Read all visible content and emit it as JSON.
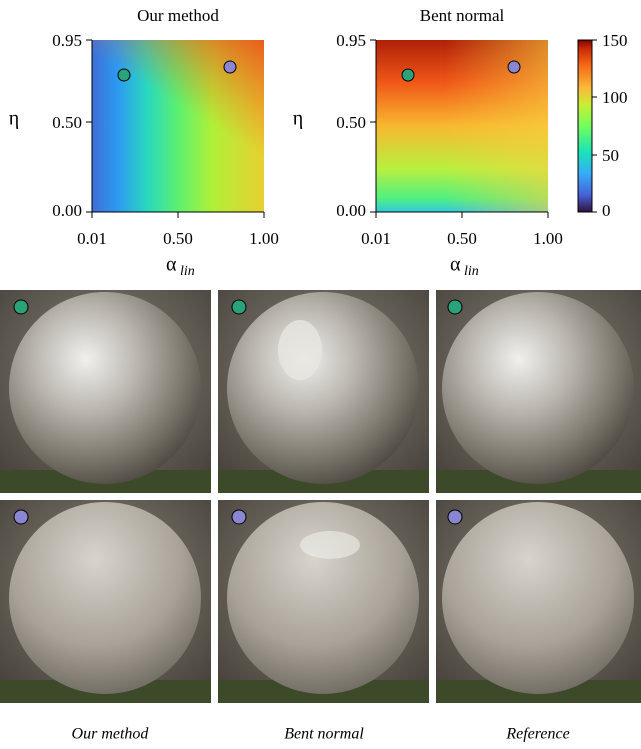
{
  "figure": {
    "heatmaps": [
      {
        "title": "Our method",
        "y_label": "η",
        "x_label": "α",
        "x_label_sub": "lin",
        "x_ticks": [
          "0.01",
          "0.50",
          "1.00"
        ],
        "y_ticks": [
          "0.95",
          "0.50",
          "0.00"
        ]
      },
      {
        "title": "Bent normal",
        "y_label": "η",
        "x_label": "α",
        "x_label_sub": "lin",
        "x_ticks": [
          "0.01",
          "0.50",
          "1.00"
        ],
        "y_ticks": [
          "0.95",
          "0.50",
          "0.00"
        ]
      }
    ],
    "colorbar_ticks": [
      "150",
      "100",
      "50",
      "0"
    ],
    "captions": [
      "Our method",
      "Bent normal",
      "Reference"
    ]
  }
}
